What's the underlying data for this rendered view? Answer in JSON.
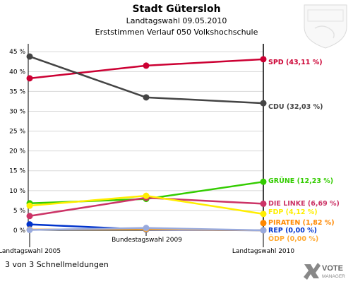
{
  "chart_data": {
    "type": "line",
    "title": "Stadt Gütersloh",
    "subtitle1": "Landtagswahl 09.05.2010",
    "subtitle2": "Erststimmen Verlauf 050 Volkshochschule",
    "categories": [
      "Landtagswahl 2005",
      "Bundestagswahl 2009",
      "Landtagswahl 2010"
    ],
    "ylim": [
      0,
      47
    ],
    "yticks": [
      "0 %",
      "5 %",
      "10 %",
      "15 %",
      "20 %",
      "25 %",
      "30 %",
      "35 %",
      "40 %",
      "45 %"
    ],
    "grid": true,
    "series": [
      {
        "name": "SPD",
        "label": "SPD (43,11 %)",
        "color": "#cc0033",
        "values": [
          38.3,
          41.5,
          43.11
        ]
      },
      {
        "name": "CDU",
        "label": "CDU (32,03 %)",
        "color": "#444444",
        "values": [
          43.8,
          33.5,
          32.03
        ]
      },
      {
        "name": "GRÜNE",
        "label": "GRÜNE (12,23 %)",
        "color": "#33cc00",
        "values": [
          6.8,
          7.9,
          12.23
        ]
      },
      {
        "name": "DIE LINKE",
        "label": "DIE LINKE (6,69 %)",
        "color": "#cc3366",
        "values": [
          3.6,
          8.2,
          6.69
        ]
      },
      {
        "name": "FDP",
        "label": "FDP (4,12 %)",
        "color": "#ffee00",
        "values": [
          6.2,
          8.7,
          4.12
        ]
      },
      {
        "name": "PIRATEN",
        "label": "PIRATEN (1,82 %)",
        "color": "#ff8800",
        "values": [
          null,
          null,
          1.82
        ]
      },
      {
        "name": "REP",
        "label": "REP (0,00 %)",
        "color": "#0033cc",
        "values": [
          1.5,
          0.2,
          0.0
        ]
      },
      {
        "name": "ÖDP",
        "label": "ÖDP (0,00 %)",
        "color": "#ffaa33",
        "values": [
          0.2,
          0.3,
          0.0
        ]
      },
      {
        "name": "Sonstige",
        "label": "",
        "color": "#99aadd",
        "values": [
          0.1,
          0.6,
          0.0
        ]
      }
    ]
  },
  "footer_text": "3 von 3 Schnellmeldungen",
  "brand_text_1": "VOTE",
  "brand_text_2": "MANAGER"
}
